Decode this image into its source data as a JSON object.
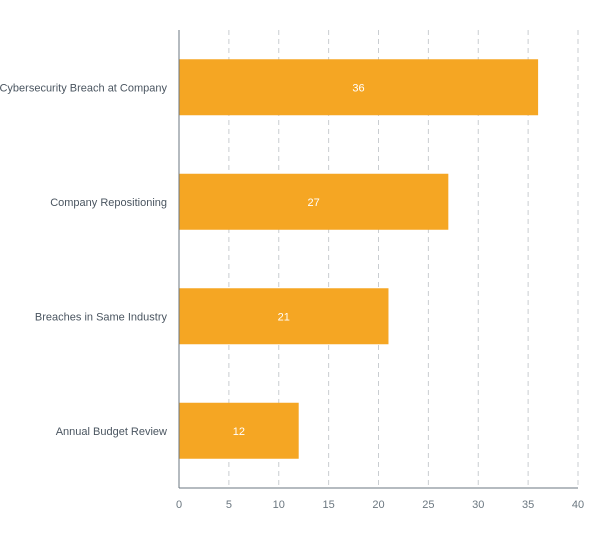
{
  "chart_data": {
    "type": "bar",
    "orientation": "horizontal",
    "title": "",
    "xlabel": "",
    "ylabel": "",
    "categories": [
      "Cybersecurity Breach at Company",
      "Company Repositioning",
      "Breaches in Same Industry",
      "Annual Budget Review"
    ],
    "values": [
      36,
      27,
      21,
      12
    ],
    "data_labels": [
      "36",
      "27",
      "21",
      "12"
    ],
    "xlim": [
      0,
      40
    ],
    "x_ticks": [
      "0",
      "5",
      "10",
      "15",
      "20",
      "25",
      "30",
      "35",
      "40"
    ],
    "grid": "vertical dashed",
    "bar_color": "#F5A623"
  }
}
